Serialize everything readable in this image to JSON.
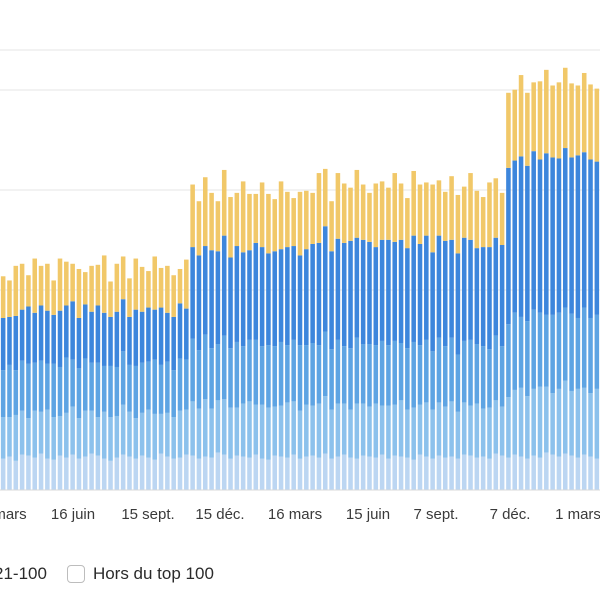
{
  "chart_data": {
    "type": "bar",
    "stacked": true,
    "x_tick_labels": [
      "mars",
      "16 juin",
      "15 sept.",
      "15 déc.",
      "16 mars",
      "15 juin",
      "7 sept.",
      "7 déc.",
      "1 mars"
    ],
    "ylim": [
      0,
      470
    ],
    "grid": true,
    "series": [
      {
        "name": "",
        "color": "#bcd6f2",
        "values": [
          30,
          32,
          28,
          34,
          33,
          31,
          35,
          30,
          29,
          33,
          31,
          34,
          30,
          32,
          35,
          33,
          30,
          28,
          31,
          34,
          32,
          30,
          33,
          31,
          29,
          35,
          32,
          30,
          31,
          34,
          33,
          30,
          32,
          31,
          36,
          34,
          30,
          33,
          32,
          31,
          34,
          30,
          29,
          33,
          32,
          31,
          34,
          30,
          32,
          33,
          31,
          35,
          30,
          32,
          34,
          31,
          30,
          33,
          32,
          31,
          34,
          30,
          33,
          32,
          31,
          29,
          34,
          32,
          30,
          33,
          31,
          32,
          30,
          34,
          33,
          31,
          32,
          30,
          35,
          33,
          31,
          34,
          32,
          30,
          33,
          31,
          36,
          34,
          32,
          35,
          33,
          31,
          34,
          32,
          30
        ]
      },
      {
        "name": "",
        "color": "#8cc1ec",
        "values": [
          40,
          38,
          44,
          42,
          36,
          45,
          40,
          47,
          41,
          38,
          43,
          46,
          39,
          44,
          41,
          37,
          45,
          42,
          40,
          48,
          43,
          39,
          41,
          46,
          44,
          38,
          42,
          40,
          45,
          43,
          52,
          48,
          55,
          47,
          50,
          53,
          49,
          46,
          51,
          54,
          48,
          52,
          50,
          47,
          49,
          53,
          51,
          46,
          50,
          48,
          52,
          55,
          47,
          51,
          49,
          46,
          53,
          50,
          48,
          52,
          47,
          51,
          49,
          54,
          46,
          50,
          48,
          52,
          47,
          51,
          49,
          53,
          45,
          50,
          48,
          52,
          46,
          49,
          51,
          47,
          58,
          62,
          66,
          60,
          64,
          68,
          63,
          59,
          65,
          70,
          62,
          66,
          64,
          61,
          67
        ]
      },
      {
        "name": "",
        "color": "#5ea4e3",
        "values": [
          45,
          50,
          43,
          48,
          52,
          46,
          49,
          44,
          51,
          47,
          53,
          45,
          48,
          50,
          46,
          52,
          44,
          49,
          47,
          51,
          45,
          50,
          48,
          46,
          52,
          47,
          49,
          45,
          50,
          48,
          60,
          56,
          62,
          58,
          54,
          61,
          57,
          63,
          55,
          59,
          62,
          56,
          60,
          58,
          61,
          55,
          59,
          63,
          57,
          60,
          56,
          62,
          58,
          61,
          55,
          59,
          63,
          57,
          60,
          56,
          62,
          58,
          61,
          55,
          59,
          63,
          57,
          60,
          56,
          62,
          58,
          61,
          55,
          59,
          63,
          57,
          60,
          56,
          62,
          58,
          70,
          74,
          68,
          72,
          76,
          71,
          69,
          75,
          73,
          70,
          74,
          68,
          77,
          72,
          71
        ]
      },
      {
        "name": "",
        "color": "#3d86dc",
        "values": [
          50,
          46,
          52,
          49,
          55,
          48,
          53,
          51,
          47,
          54,
          50,
          56,
          48,
          52,
          49,
          55,
          51,
          47,
          53,
          50,
          46,
          54,
          49,
          52,
          48,
          55,
          47,
          51,
          53,
          49,
          88,
          91,
          85,
          94,
          89,
          96,
          87,
          92,
          90,
          86,
          93,
          95,
          88,
          91,
          89,
          94,
          90,
          86,
          92,
          95,
          98,
          101,
          94,
          97,
          99,
          103,
          96,
          100,
          98,
          94,
          97,
          101,
          95,
          99,
          96,
          102,
          97,
          100,
          95,
          98,
          101,
          94,
          97,
          99,
          96,
          92,
          95,
          98,
          94,
          97,
          150,
          146,
          154,
          149,
          152,
          147,
          155,
          151,
          148,
          153,
          150,
          156,
          149,
          152,
          147
        ]
      },
      {
        "name": "",
        "color": "#f1c869",
        "values": [
          40,
          35,
          48,
          44,
          30,
          52,
          38,
          45,
          33,
          50,
          42,
          36,
          47,
          31,
          44,
          39,
          55,
          34,
          46,
          41,
          37,
          49,
          43,
          35,
          51,
          38,
          45,
          40,
          33,
          47,
          60,
          52,
          66,
          55,
          48,
          63,
          58,
          51,
          68,
          54,
          47,
          62,
          57,
          50,
          65,
          53,
          46,
          61,
          56,
          49,
          67,
          55,
          48,
          63,
          57,
          51,
          65,
          53,
          47,
          61,
          56,
          50,
          66,
          54,
          48,
          62,
          57,
          51,
          65,
          53,
          47,
          61,
          56,
          49,
          64,
          55,
          48,
          62,
          57,
          50,
          72,
          68,
          78,
          70,
          66,
          75,
          80,
          69,
          73,
          77,
          71,
          67,
          76,
          72,
          70
        ]
      }
    ]
  },
  "legend": {
    "items": [
      {
        "label": "21-100",
        "swatch": false
      },
      {
        "label": "Hors du top 100",
        "swatch": true
      }
    ]
  }
}
